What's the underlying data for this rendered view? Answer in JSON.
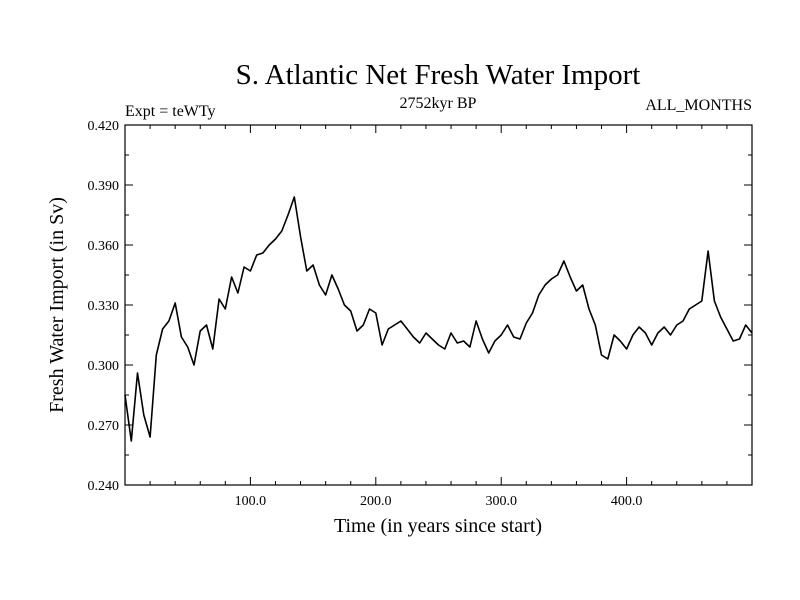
{
  "chart_data": {
    "type": "line",
    "title": "S. Atlantic Net Fresh Water Import",
    "subtitle_left": "Expt = teWTy",
    "subtitle_center": "2752kyr BP",
    "subtitle_right": "ALL_MONTHS",
    "xlabel": "Time (in years since start)",
    "ylabel": "Fresh Water Import (in Sv)",
    "xlim": [
      0,
      500
    ],
    "ylim": [
      0.24,
      0.42
    ],
    "x_ticks": [
      100,
      200,
      300,
      400
    ],
    "x_tick_labels": [
      "100.0",
      "200.0",
      "300.0",
      "400.0"
    ],
    "y_ticks": [
      0.24,
      0.27,
      0.3,
      0.33,
      0.36,
      0.39,
      0.42
    ],
    "y_tick_labels": [
      "0.240",
      "0.270",
      "0.300",
      "0.330",
      "0.360",
      "0.390",
      "0.420"
    ],
    "series": [
      {
        "name": "net fresh water import",
        "color": "#000000",
        "x_start": 0,
        "x_step": 5,
        "values": [
          0.285,
          0.262,
          0.296,
          0.275,
          0.264,
          0.305,
          0.318,
          0.322,
          0.331,
          0.314,
          0.309,
          0.3,
          0.317,
          0.32,
          0.308,
          0.333,
          0.328,
          0.344,
          0.336,
          0.349,
          0.347,
          0.355,
          0.356,
          0.36,
          0.363,
          0.367,
          0.375,
          0.384,
          0.364,
          0.347,
          0.35,
          0.34,
          0.335,
          0.345,
          0.338,
          0.33,
          0.327,
          0.317,
          0.32,
          0.328,
          0.326,
          0.31,
          0.318,
          0.32,
          0.322,
          0.318,
          0.314,
          0.311,
          0.316,
          0.313,
          0.31,
          0.308,
          0.316,
          0.311,
          0.312,
          0.309,
          0.322,
          0.313,
          0.306,
          0.312,
          0.315,
          0.32,
          0.314,
          0.313,
          0.321,
          0.326,
          0.335,
          0.34,
          0.343,
          0.345,
          0.352,
          0.344,
          0.337,
          0.34,
          0.328,
          0.32,
          0.305,
          0.303,
          0.315,
          0.312,
          0.308,
          0.315,
          0.319,
          0.316,
          0.31,
          0.316,
          0.319,
          0.315,
          0.32,
          0.322,
          0.328,
          0.33,
          0.332,
          0.357,
          0.332,
          0.324,
          0.318,
          0.312,
          0.313,
          0.32,
          0.316
        ]
      }
    ]
  }
}
